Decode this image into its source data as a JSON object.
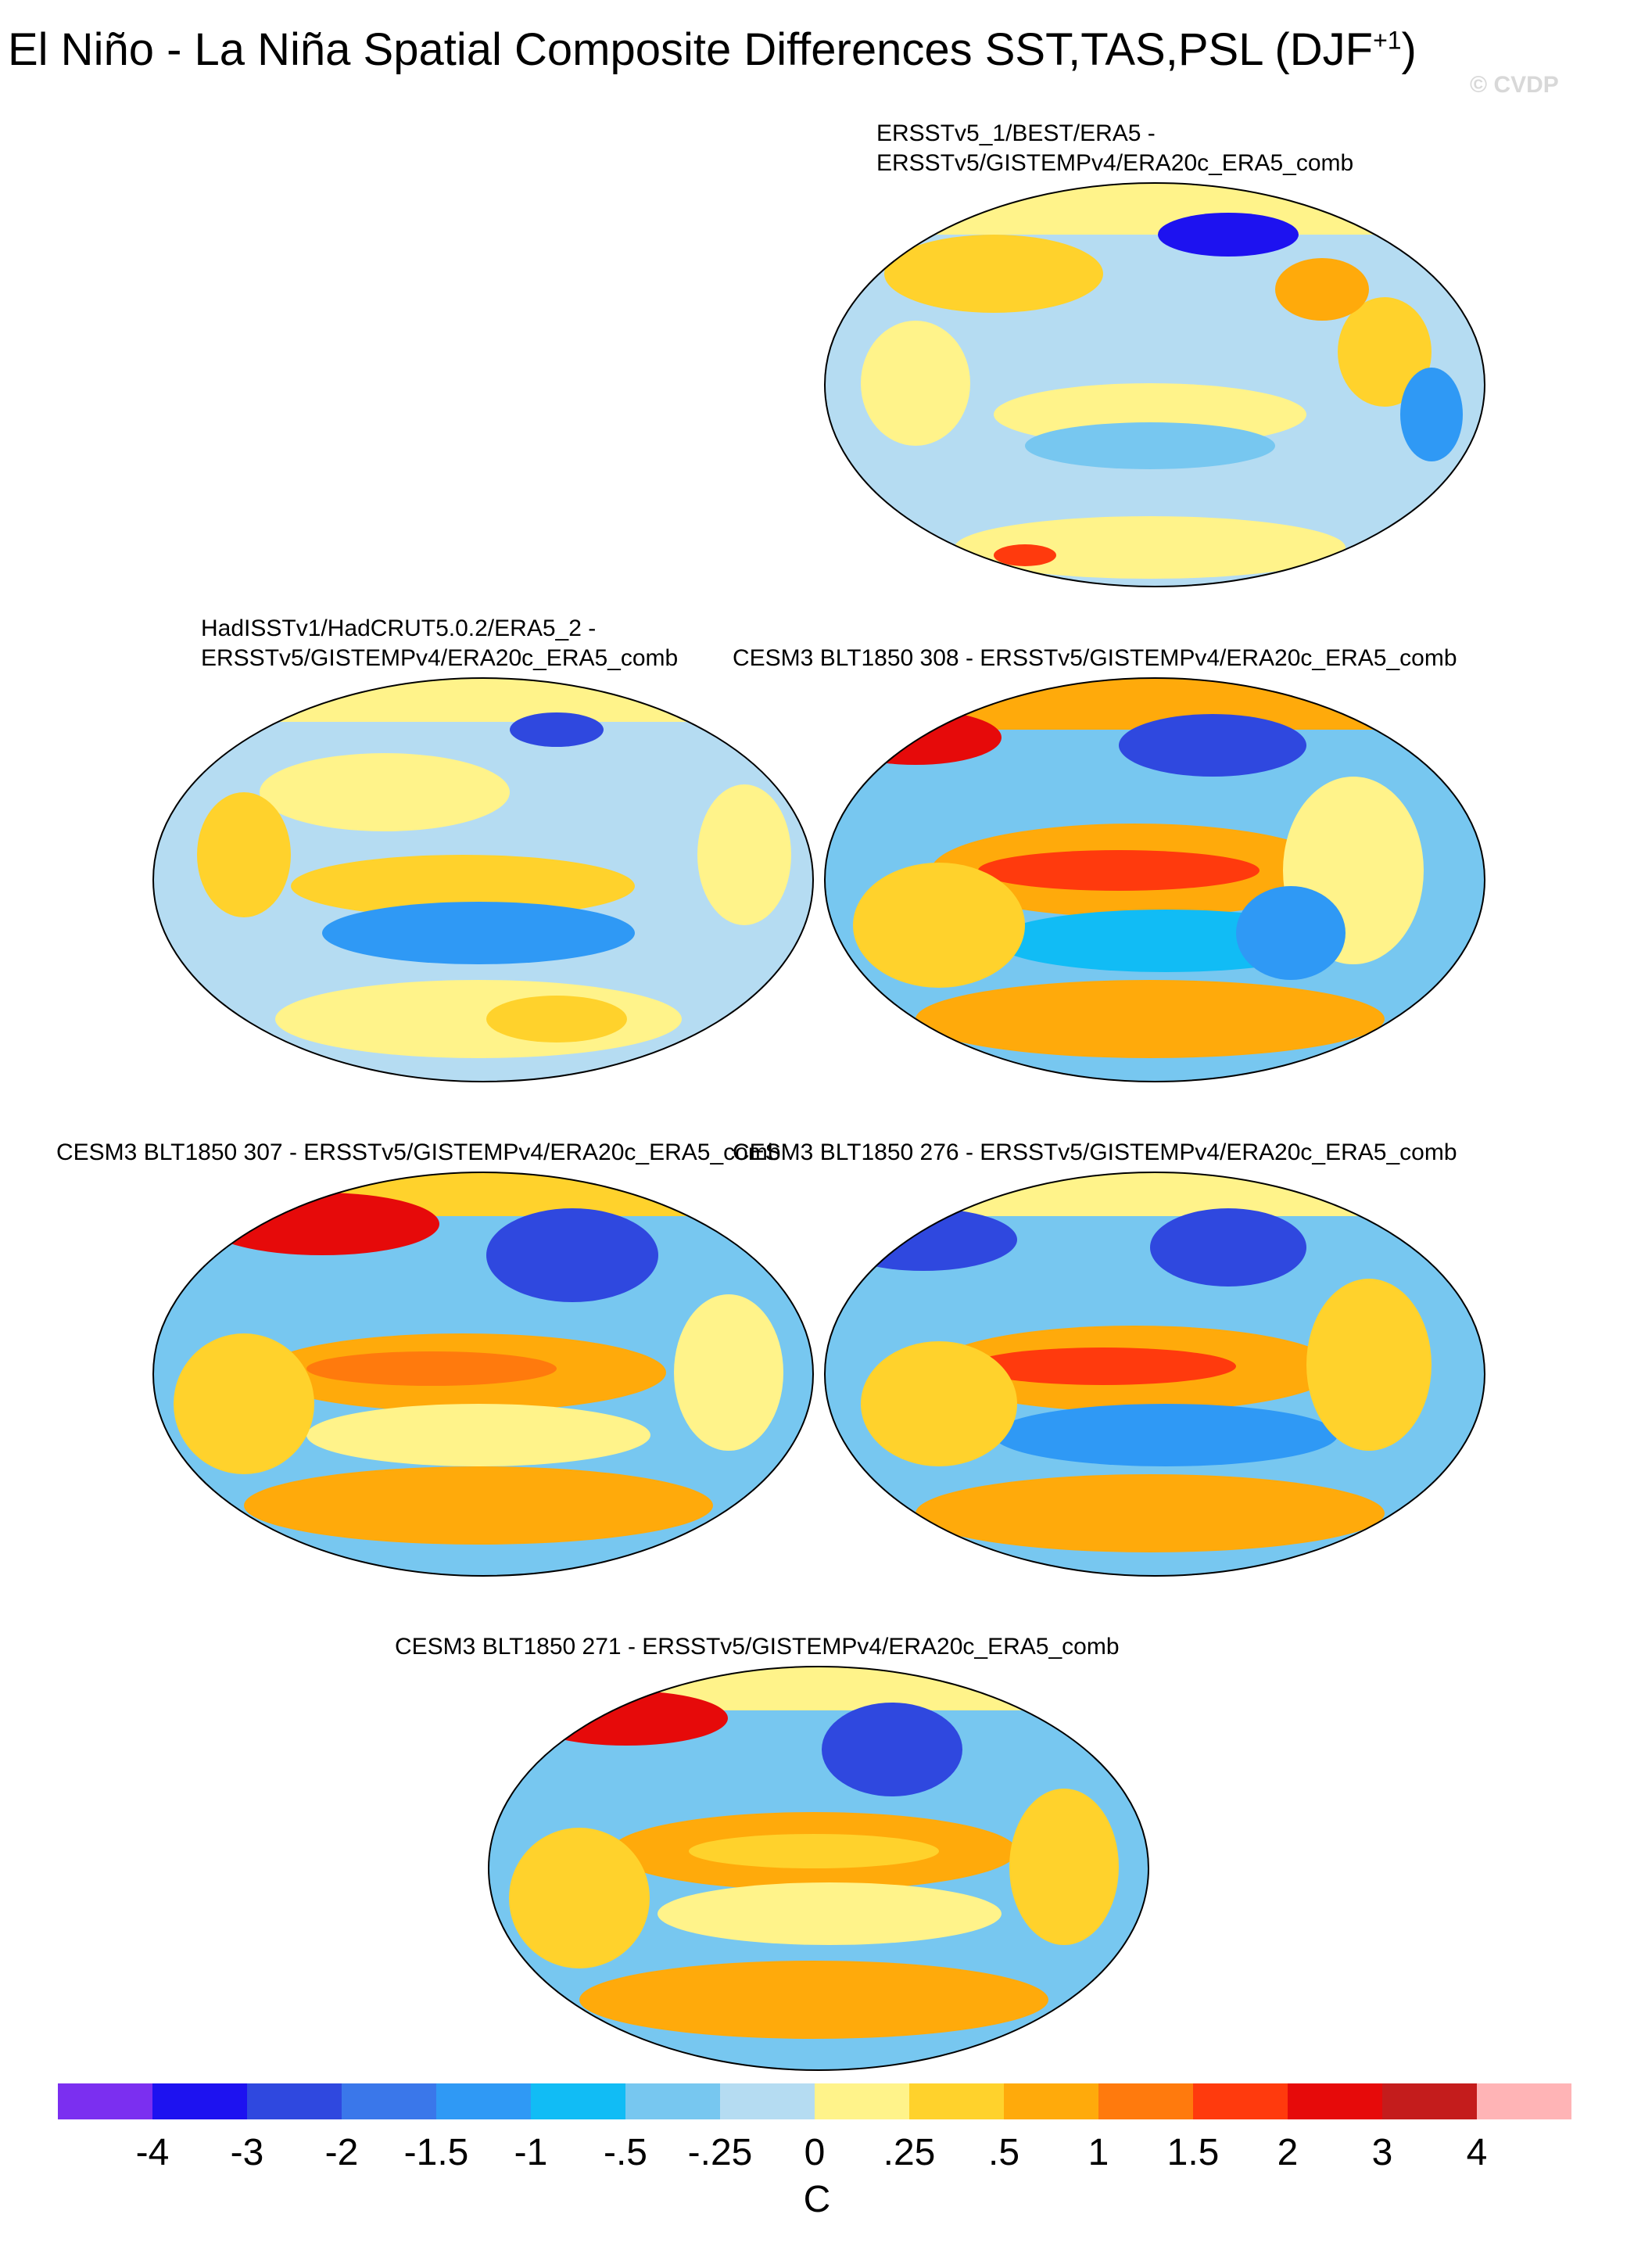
{
  "title": {
    "main": "El Niño - La Niña Spatial Composite Differences SST,TAS,PSL (DJF",
    "sup": "+1",
    "close": ")"
  },
  "watermark": "© CVDP",
  "panels": [
    {
      "line1": "ERSSTv5_1/BEST/ERA5 -",
      "line2": "ERSSTv5/GISTEMPv4/ERA20c_ERA5_comb"
    },
    {
      "line1": "HadISSTv1/HadCRUT5.0.2/ERA5_2 -",
      "line2": "ERSSTv5/GISTEMPv4/ERA20c_ERA5_comb"
    },
    {
      "line1": "CESM3 BLT1850 308 - ERSSTv5/GISTEMPv4/ERA20c_ERA5_comb"
    },
    {
      "line1": "CESM3 BLT1850 307 - ERSSTv5/GISTEMPv4/ERA20c_ERA5_comb"
    },
    {
      "line1": "CESM3 BLT1850 276 - ERSSTv5/GISTEMPv4/ERA20c_ERA5_comb"
    },
    {
      "line1": "CESM3 BLT1850 271 - ERSSTv5/GISTEMPv4/ERA20c_ERA5_comb"
    }
  ],
  "colorbar": {
    "colors": [
      "#7b2ff0",
      "#1d12f0",
      "#2f48df",
      "#3a77ea",
      "#2f99f5",
      "#11bcf5",
      "#77c7f0",
      "#b5dcf2",
      "#fff38a",
      "#ffd22c",
      "#ffaa0b",
      "#ff7a0d",
      "#ff3a0d",
      "#e60a0a",
      "#c41c1c",
      "#ffb4b6"
    ],
    "ticks": [
      "-4",
      "-3",
      "-2",
      "-1.5",
      "-1",
      "-.5",
      "-.25",
      "0",
      ".25",
      ".5",
      "1",
      "1.5",
      "2",
      "3",
      "4"
    ],
    "unit": "C"
  }
}
